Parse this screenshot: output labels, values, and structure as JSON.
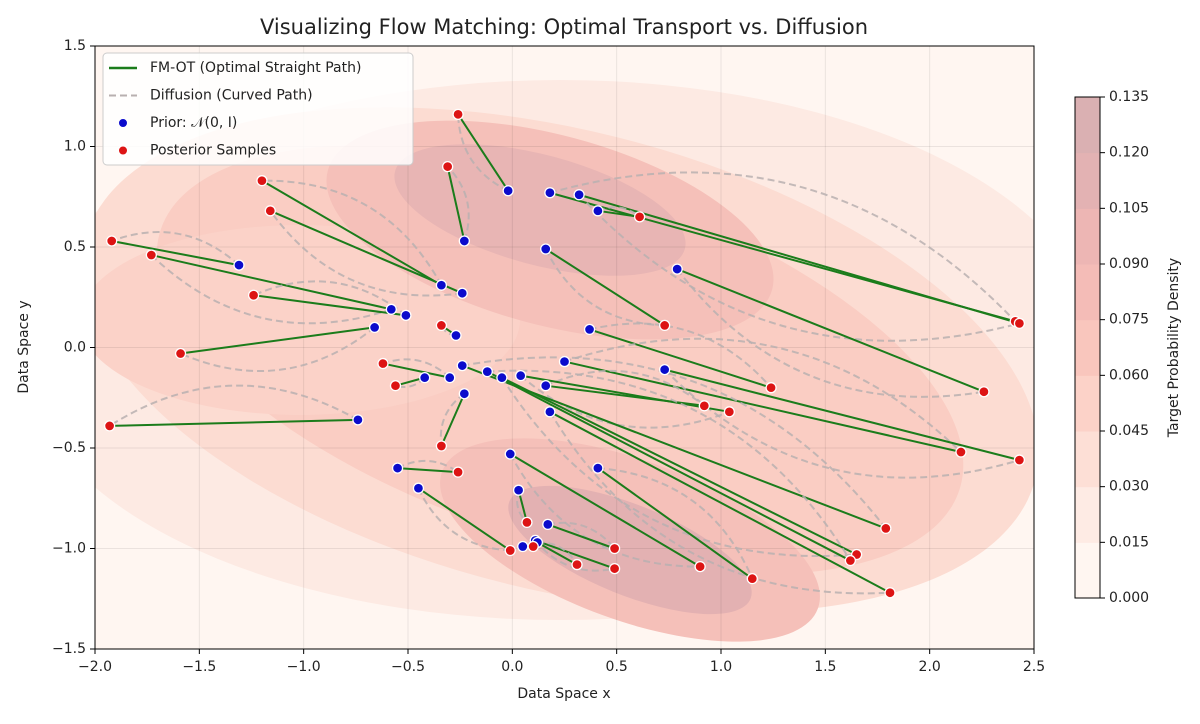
{
  "chart_data": {
    "type": "scatter",
    "title": "Visualizing Flow Matching: Optimal Transport vs. Diffusion",
    "xlabel": "Data Space x",
    "ylabel": "Data Space y",
    "xlim": [
      -2.0,
      2.5
    ],
    "ylim": [
      -1.5,
      1.5
    ],
    "xticks": [
      {
        "value": -2.0,
        "label": "−2.0"
      },
      {
        "value": -1.5,
        "label": "−1.5"
      },
      {
        "value": -1.0,
        "label": "−1.0"
      },
      {
        "value": -0.5,
        "label": "−0.5"
      },
      {
        "value": 0.0,
        "label": "0.0"
      },
      0.5,
      {
        "value": 1.0,
        "label": "1.0"
      },
      1.5,
      {
        "value": 2.0,
        "label": "2.0"
      },
      2.5
    ],
    "yticks": [
      {
        "value": -1.5,
        "label": "−1.5"
      },
      {
        "value": -1.0,
        "label": "−1.0"
      },
      {
        "value": -0.5,
        "label": "−0.5"
      },
      {
        "value": 0.0,
        "label": "0.0"
      },
      0.5,
      {
        "value": 1.0,
        "label": "1.0"
      },
      1.5
    ],
    "grid": true,
    "legend": "upper left",
    "series": [
      {
        "name": "FM-OT (Optimal Straight Path)",
        "color": "#1b7c1b"
      },
      {
        "name": "Diffusion (Curved Path)",
        "color": "#b8b0b0"
      },
      {
        "name": "Prior: 𝒩(0, I)",
        "color": "#0b0bcc",
        "x": [
          -0.02,
          -0.34,
          -0.24,
          -1.31,
          -0.58,
          -0.51,
          -0.66,
          -0.74,
          0.18,
          0.32,
          0.41,
          0.16,
          0.37,
          0.79,
          0.25,
          0.73,
          0.16,
          0.04,
          -0.24,
          -0.05,
          -0.12,
          0.18,
          0.41,
          -0.01,
          0.17,
          0.11,
          0.12,
          0.03,
          0.05,
          -0.45,
          -0.55,
          -0.23,
          -0.42,
          -0.3,
          -0.27,
          -0.23
        ],
        "y": [
          0.78,
          0.31,
          0.27,
          0.41,
          0.19,
          0.16,
          0.1,
          -0.36,
          0.77,
          0.76,
          0.68,
          0.49,
          0.09,
          0.39,
          -0.07,
          -0.11,
          -0.19,
          -0.14,
          -0.09,
          -0.15,
          -0.12,
          -0.32,
          -0.6,
          -0.53,
          -0.88,
          -0.96,
          -0.97,
          -0.71,
          -0.99,
          -0.7,
          -0.6,
          -0.23,
          -0.15,
          -0.15,
          0.06,
          0.53
        ]
      },
      {
        "name": "Posterior Samples",
        "color": "#dd1414",
        "x": [
          -0.26,
          -1.2,
          -1.16,
          -1.92,
          -1.73,
          -1.24,
          -1.59,
          -1.93,
          2.41,
          2.43,
          0.61,
          0.73,
          1.24,
          2.26,
          2.15,
          2.43,
          0.92,
          1.04,
          1.79,
          1.65,
          1.62,
          1.81,
          1.15,
          0.9,
          0.49,
          0.49,
          0.31,
          0.07,
          0.1,
          -0.01,
          -0.26,
          -0.34,
          -0.56,
          -0.62,
          -0.34,
          -0.31
        ],
        "y": [
          1.16,
          0.83,
          0.68,
          0.53,
          0.46,
          0.26,
          -0.03,
          -0.39,
          0.13,
          0.12,
          0.65,
          0.11,
          -0.2,
          -0.22,
          -0.52,
          -0.56,
          -0.29,
          -0.32,
          -0.9,
          -1.03,
          -1.06,
          -1.22,
          -1.15,
          -1.09,
          -1.0,
          -1.1,
          -1.08,
          -0.87,
          -0.99,
          -1.01,
          -0.62,
          -0.49,
          -0.19,
          -0.08,
          0.11,
          0.9
        ]
      }
    ],
    "colorbar": {
      "label": "Target Probability Density",
      "lim": [
        0.0,
        0.135
      ],
      "ticks": [
        {
          "value": 0.0,
          "label": "0.000"
        },
        {
          "value": 0.015,
          "label": "0.015"
        },
        {
          "value": 0.03,
          "label": "0.030"
        },
        {
          "value": 0.045,
          "label": "0.045"
        },
        {
          "value": 0.06,
          "label": "0.060"
        },
        {
          "value": 0.075,
          "label": "0.075"
        },
        {
          "value": 0.09,
          "label": "0.090"
        },
        {
          "value": 0.105,
          "label": "0.105"
        },
        {
          "value": 0.12,
          "label": "0.120"
        },
        {
          "value": 0.135,
          "label": "0.135"
        }
      ],
      "colors": [
        "#fff6f1",
        "#feebe4",
        "#fddfd6",
        "#fcd2c8",
        "#f9c6bd",
        "#f4bcb7",
        "#edb6b4",
        "#e3b2b3",
        "#dab0b2"
      ]
    }
  }
}
